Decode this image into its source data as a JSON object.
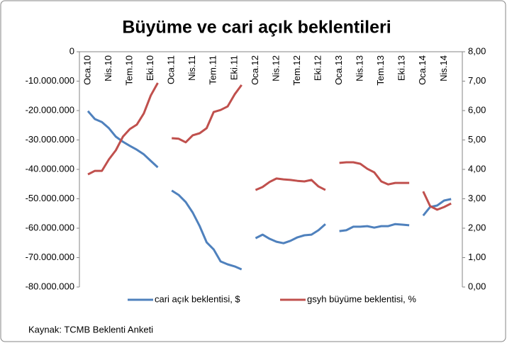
{
  "chart_data": {
    "type": "line",
    "title": "Büyüme ve cari açık beklentileri",
    "source": "Kaynak: TCMB Beklenti Anketi",
    "categories": [
      "Oca.10",
      null,
      null,
      "Nis.10",
      null,
      null,
      "Tem.10",
      null,
      null,
      "Eki.10",
      null,
      null,
      "Oca.11",
      null,
      null,
      "Nis.11",
      null,
      null,
      "Tem.11",
      null,
      null,
      "Eki.11",
      null,
      null,
      "Oca.12",
      null,
      null,
      "Nis.12",
      null,
      null,
      "Tem.12",
      null,
      null,
      "Eki.12",
      null,
      null,
      "Oca.13",
      null,
      null,
      "Nis.13",
      null,
      null,
      "Tem.13",
      null,
      null,
      "Eki.13",
      null,
      null,
      "Oca.14",
      null,
      null,
      "Nis.14",
      null
    ],
    "series": [
      {
        "name": "cari açık beklentisi, $",
        "color": "#4f81bd",
        "axis": "y",
        "values": [
          -20200000,
          -22900000,
          -23900000,
          -26000000,
          -28900000,
          -30600000,
          -32000000,
          -33300000,
          -34900000,
          -37100000,
          -39300000,
          null,
          -47200000,
          -48700000,
          -51100000,
          -54700000,
          -59300000,
          -64800000,
          -67200000,
          -71300000,
          -72300000,
          -73000000,
          -74000000,
          null,
          -63400000,
          -62200000,
          -63600000,
          -64600000,
          -65100000,
          -64300000,
          -63100000,
          -62400000,
          -62200000,
          -60700000,
          -58600000,
          null,
          -61000000,
          -60700000,
          -59500000,
          -59500000,
          -59300000,
          -59800000,
          -59300000,
          -59300000,
          -58600000,
          -58800000,
          -59000000,
          null,
          -55700000,
          -52800000,
          -52300000,
          -50600000,
          -50100000
        ]
      },
      {
        "name": "gsyh büyüme beklentisi, %",
        "color": "#c0504d",
        "axis": "y2",
        "values": [
          3.83,
          3.95,
          3.95,
          4.34,
          4.65,
          5.11,
          5.37,
          5.52,
          5.9,
          6.51,
          6.94,
          null,
          5.06,
          5.04,
          4.92,
          5.16,
          5.23,
          5.4,
          5.95,
          6.02,
          6.14,
          6.55,
          6.87,
          null,
          3.3,
          3.4,
          3.57,
          3.69,
          3.66,
          3.64,
          3.61,
          3.59,
          3.64,
          3.42,
          3.3,
          null,
          4.22,
          4.24,
          4.24,
          4.19,
          4.02,
          3.9,
          3.59,
          3.49,
          3.54,
          3.54,
          3.54,
          null,
          3.25,
          2.75,
          2.63,
          2.72,
          2.84
        ]
      }
    ],
    "ylim": [
      -80000000,
      0
    ],
    "yticks": [
      0,
      {
        "value": -10000000,
        "label": "-10.000.000"
      },
      {
        "value": -20000000,
        "label": "-20.000.000"
      },
      {
        "value": -30000000,
        "label": "-30.000.000"
      },
      {
        "value": -40000000,
        "label": "-40.000.000"
      },
      {
        "value": -50000000,
        "label": "-50.000.000"
      },
      {
        "value": -60000000,
        "label": "-60.000.000"
      },
      {
        "value": -70000000,
        "label": "-70.000.000"
      },
      {
        "value": -80000000,
        "label": "-80.000.000"
      }
    ],
    "y2lim": [
      0,
      8
    ],
    "y2ticks": [
      {
        "value": 0,
        "label": "0,00"
      },
      {
        "value": 1,
        "label": "1,00"
      },
      {
        "value": 2,
        "label": "2,00"
      },
      {
        "value": 3,
        "label": "3,00"
      },
      {
        "value": 4,
        "label": "4,00"
      },
      {
        "value": 5,
        "label": "5,00"
      },
      {
        "value": 6,
        "label": "6,00"
      },
      {
        "value": 7,
        "label": "7,00"
      },
      {
        "value": 8,
        "label": "8,00"
      }
    ],
    "grid": false,
    "legend": "bottom"
  }
}
